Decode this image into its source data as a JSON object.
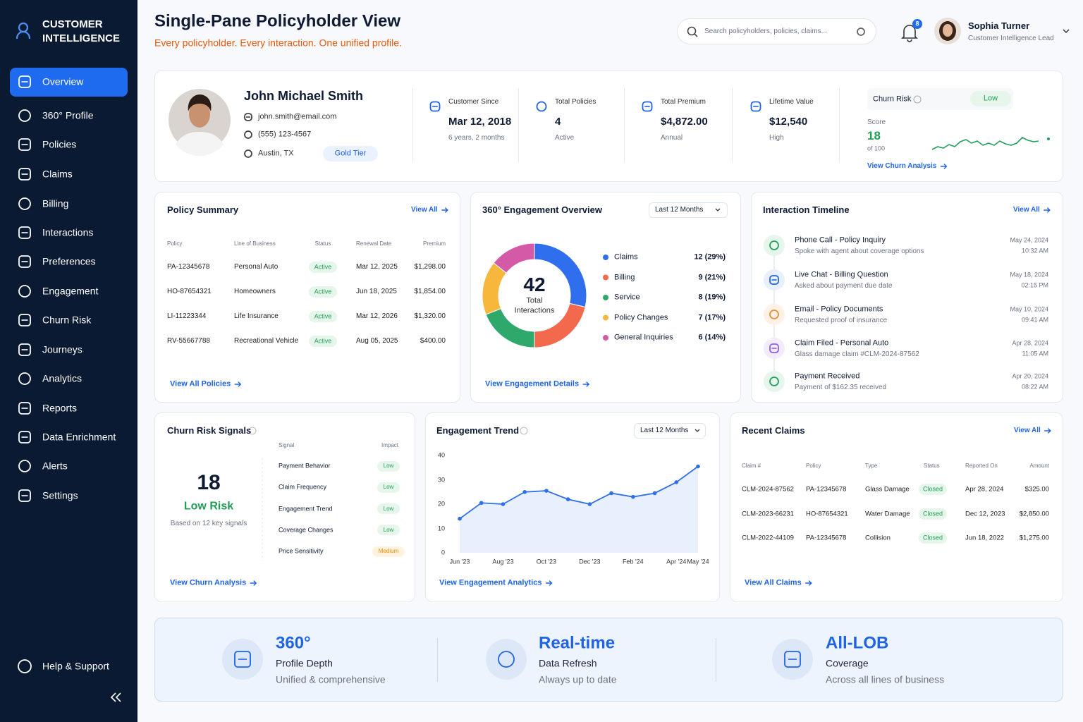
{
  "sidebar": {
    "brand": [
      "CUSTOMER",
      "INTELLIGENCE"
    ],
    "nav": [
      "Overview",
      "360° Profile",
      "Policies",
      "Claims",
      "Billing",
      "Interactions",
      "Preferences",
      "Engagement",
      "Churn Risk",
      "Journeys",
      "Analytics",
      "Reports",
      "Data Enrichment",
      "Alerts",
      "Settings"
    ],
    "help": "Help & Support"
  },
  "header": {
    "title": "Single-Pane Policyholder View",
    "subtitle": "Every policyholder. Every interaction. One unified profile.",
    "search_placeholder": "Search policyholders, policies, claims...",
    "notifications": 8,
    "user": {
      "name": "Sophia Turner",
      "role": "Customer Intelligence Lead"
    }
  },
  "profile": {
    "name": "John Michael Smith",
    "email": "john.smith@email.com",
    "phone": "(555) 123-4567",
    "location": "Austin, TX",
    "tier": "Gold Tier"
  },
  "stats": [
    {
      "label": "Customer Since",
      "value": "Mar 12, 2018",
      "sub": "6 years, 2 months"
    },
    {
      "label": "Total Policies",
      "value": "4",
      "sub": "Active"
    },
    {
      "label": "Total Premium",
      "value": "$4,872.00",
      "sub": "Annual"
    },
    {
      "label": "Lifetime Value",
      "value": "$12,540",
      "sub": "High"
    }
  ],
  "churn_card": {
    "label": "Churn Risk",
    "level": "Low",
    "score_label": "Score",
    "score": 18,
    "score_of": "of 100",
    "link": "View Churn Analysis"
  },
  "policy_summary": {
    "title": "Policy Summary",
    "link_top": "View All",
    "columns": [
      "Policy",
      "Line of Business",
      "Status",
      "Renewal Date",
      "Premium"
    ],
    "rows": [
      [
        "PA-12345678",
        "Personal Auto",
        "Active",
        "Mar 12, 2025",
        "$1,298.00"
      ],
      [
        "HO-87654321",
        "Homeowners",
        "Active",
        "Jun 18, 2025",
        "$1,854.00"
      ],
      [
        "LI-11223344",
        "Life Insurance",
        "Active",
        "Mar 12, 2026",
        "$1,320.00"
      ],
      [
        "RV-55667788",
        "Recreational Vehicle",
        "Active",
        "Aug 05, 2025",
        "$400.00"
      ]
    ],
    "link": "View All Policies"
  },
  "engagement_overview": {
    "title": "360° Engagement Overview",
    "filter": "Last 12 Months",
    "total": 42,
    "total_label": [
      "Total",
      "Interactions"
    ],
    "chart_data": {
      "type": "donut",
      "categories": [
        "Claims",
        "Billing",
        "Service",
        "Policy Changes",
        "General Inquiries"
      ],
      "values": [
        12,
        9,
        8,
        7,
        6
      ],
      "value_labels": [
        "12 (29%)",
        "9 (21%)",
        "8 (19%)",
        "7 (17%)",
        "6 (14%)"
      ],
      "colors": [
        "#2f6fed",
        "#f2694e",
        "#2ea86b",
        "#f6b73c",
        "#d45aa8"
      ]
    },
    "link": "View Engagement Details"
  },
  "timeline": {
    "title": "Interaction Timeline",
    "link_top": "View All",
    "items": [
      {
        "title": "Phone Call - Policy Inquiry",
        "desc": "Spoke with agent about coverage options",
        "date": "May 24, 2024",
        "time": "10:32 AM"
      },
      {
        "title": "Live Chat - Billing Question",
        "desc": "Asked about payment due date",
        "date": "May 18, 2024",
        "time": "02:15 PM"
      },
      {
        "title": "Email - Policy Documents",
        "desc": "Requested proof of insurance",
        "date": "May 10, 2024",
        "time": "09:41 AM"
      },
      {
        "title": "Claim Filed - Personal Auto",
        "desc": "Glass damage claim #CLM-2024-87562",
        "date": "Apr 28, 2024",
        "time": "11:05 AM"
      },
      {
        "title": "Payment Received",
        "desc": "Payment of $162.35 received",
        "date": "Apr 20, 2024",
        "time": "08:22 AM"
      }
    ]
  },
  "churn_signals": {
    "title": "Churn Risk Signals",
    "score": 18,
    "level": "Low Risk",
    "note": "Based on 12 key signals",
    "columns": [
      "Signal",
      "Impact"
    ],
    "rows": [
      [
        "Payment Behavior",
        "Low"
      ],
      [
        "Claim Frequency",
        "Low"
      ],
      [
        "Engagement Trend",
        "Low"
      ],
      [
        "Coverage Changes",
        "Low"
      ],
      [
        "Price Sensitivity",
        "Medium"
      ]
    ],
    "link": "View Churn Analysis"
  },
  "engagement_trend": {
    "title": "Engagement Trend",
    "filter": "Last 12 Months",
    "chart_data": {
      "type": "line",
      "categories": [
        "Jun '23",
        null,
        "Aug '23",
        null,
        "Oct '23",
        null,
        "Dec '23",
        null,
        "Feb '24",
        null,
        "Apr '24",
        "May '24"
      ],
      "values": [
        14,
        20.5,
        20,
        25,
        25.5,
        22,
        20,
        24.5,
        23,
        24.5,
        29,
        35.5
      ],
      "ylim": [
        0,
        40
      ],
      "yticks": [
        0,
        10,
        20,
        30,
        40
      ],
      "color": "#2f6fed",
      "grid": false
    },
    "link": "View Engagement Analytics"
  },
  "recent_claims": {
    "title": "Recent Claims",
    "link_top": "View All",
    "columns": [
      "Claim #",
      "Policy",
      "Type",
      "Status",
      "Reported On",
      "Amount"
    ],
    "rows": [
      [
        "CLM-2024-87562",
        "PA-12345678",
        "Glass Damage",
        "Closed",
        "Apr 28, 2024",
        "$325.00"
      ],
      [
        "CLM-2023-66231",
        "HO-87654321",
        "Water Damage",
        "Closed",
        "Dec 12, 2023",
        "$2,850.00"
      ],
      [
        "CLM-2022-44109",
        "PA-12345678",
        "Collision",
        "Closed",
        "Jun 18, 2022",
        "$1,275.00"
      ]
    ],
    "link": "View All Claims"
  },
  "highlights": [
    {
      "big": "360°",
      "label": "Profile Depth",
      "sub": "Unified & comprehensive"
    },
    {
      "big": "Real-time",
      "label": "Data Refresh",
      "sub": "Always up to date"
    },
    {
      "big": "All-LOB",
      "label": "Coverage",
      "sub": "Across all lines of business"
    }
  ]
}
